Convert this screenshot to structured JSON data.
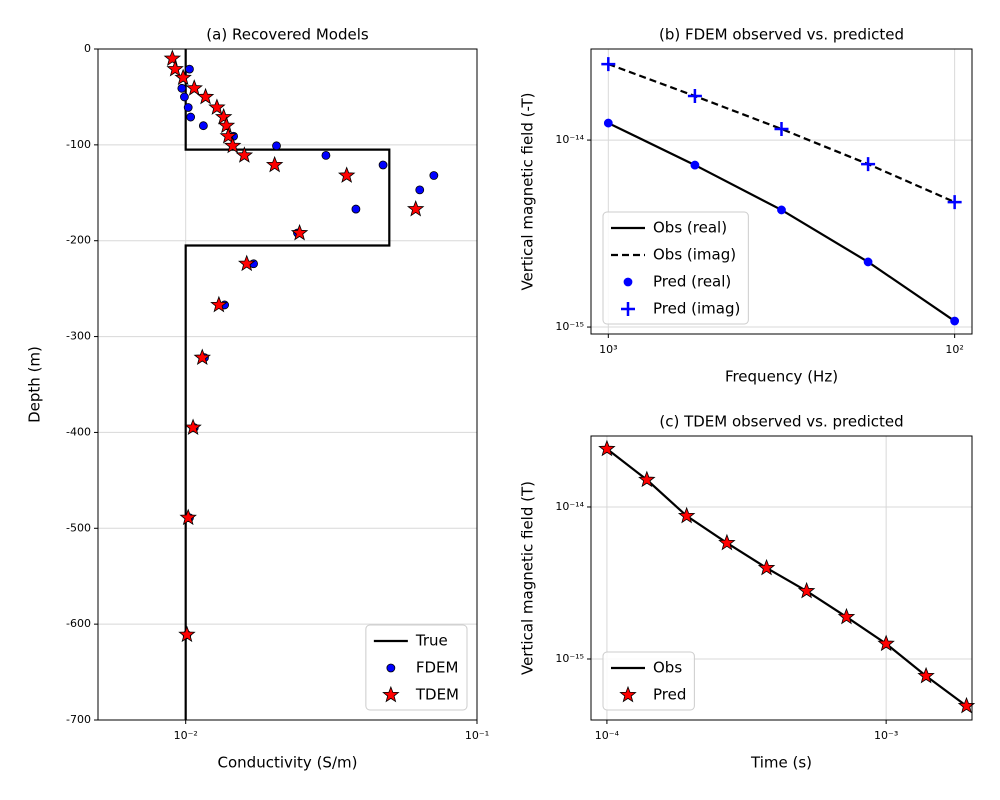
{
  "chart_data": [
    {
      "type": "line",
      "title": "(a) Recovered Models",
      "xlabel": "Conductivity (S/m)",
      "ylabel": "Depth (m)",
      "xscale": "log",
      "xlim": [
        0.005,
        0.1
      ],
      "ylim": [
        -700,
        0
      ],
      "xticks": [
        {
          "value": 0.01,
          "label": "10⁻²"
        },
        {
          "value": 0.1,
          "label": "10⁻¹"
        }
      ],
      "yticks": [
        0,
        -100,
        -200,
        -300,
        -400,
        -500,
        -600,
        -700
      ],
      "grid": true,
      "legend": "lower right",
      "series": [
        {
          "name": "True",
          "color": "#000000",
          "style": "solid",
          "x": [
            0.01,
            0.01,
            0.05,
            0.05,
            0.01,
            0.01
          ],
          "values": [
            0,
            -105,
            -105,
            -205,
            -205,
            -700
          ]
        },
        {
          "name": "FDEM",
          "color": "#0000ff",
          "marker": "circle",
          "edgecolor": "#000000",
          "x": [
            0.0103,
            0.0097,
            0.0099,
            0.0102,
            0.0104,
            0.0115,
            0.0146,
            0.0205,
            0.0303,
            0.0476,
            0.0711,
            0.0636,
            0.0384,
            0.0242,
            0.0171,
            0.0136,
            0.0116,
            0.0107,
            0.0103,
            0.0101
          ],
          "values": [
            -21,
            -41,
            -50,
            -61,
            -71,
            -80,
            -91,
            -101,
            -111,
            -121,
            -132,
            -147,
            -167,
            -192,
            -224,
            -267,
            -322,
            -395,
            -489,
            -611
          ]
        },
        {
          "name": "TDEM",
          "color": "#ff0000",
          "marker": "star",
          "edgecolor": "#000000",
          "x": [
            0.009,
            0.0092,
            0.0098,
            0.0107,
            0.0117,
            0.0128,
            0.0135,
            0.0138,
            0.014,
            0.0145,
            0.0159,
            0.0202,
            0.0357,
            0.0616,
            0.0246,
            0.0162,
            0.013,
            0.0114,
            0.0106,
            0.0102,
            0.0101
          ],
          "values": [
            -10,
            -21,
            -30,
            -41,
            -50,
            -61,
            -71,
            -80,
            -91,
            -101,
            -111,
            -121,
            -132,
            -167,
            -192,
            -224,
            -267,
            -322,
            -395,
            -489,
            -611
          ]
        }
      ]
    },
    {
      "type": "line",
      "title": "(b) FDEM observed vs. predicted",
      "xlabel": "Frequency (Hz)",
      "ylabel": "Vertical magnetic field (-T)",
      "xscale": "log",
      "yscale": "log",
      "xlim": [
        1122,
        89.1
      ],
      "ylim": [
        9.18e-16,
        3.07e-14
      ],
      "xticks": [
        {
          "value": 1000,
          "label": "10³"
        },
        {
          "value": 100,
          "label": "10²"
        }
      ],
      "yticks": [
        {
          "value": 1e-15,
          "label": "10⁻¹⁵"
        },
        {
          "value": 1e-14,
          "label": "10⁻¹⁴"
        }
      ],
      "grid": true,
      "legend": "lower left",
      "x": [
        1000,
        562.3,
        316.2,
        177.8,
        100
      ],
      "series": [
        {
          "name": "Obs (real)",
          "color": "#000000",
          "style": "solid",
          "values": [
            1.233e-14,
            7.35e-15,
            4.23e-15,
            2.23e-15,
            1.077e-15
          ]
        },
        {
          "name": "Obs (imag)",
          "color": "#000000",
          "style": "dashed",
          "values": [
            2.55e-14,
            1.72e-14,
            1.146e-14,
            7.44e-15,
            4.66e-15
          ]
        },
        {
          "name": "Pred (real)",
          "color": "#0000ff",
          "marker": "circle",
          "values": [
            1.233e-14,
            7.35e-15,
            4.23e-15,
            2.23e-15,
            1.077e-15
          ]
        },
        {
          "name": "Pred (imag)",
          "color": "#0000ff",
          "marker": "plus",
          "values": [
            2.55e-14,
            1.72e-14,
            1.146e-14,
            7.44e-15,
            4.66e-15
          ]
        }
      ]
    },
    {
      "type": "line",
      "title": "(c) TDEM observed vs. predicted",
      "xlabel": "Time (s)",
      "ylabel": "Vertical magnetic field (T)",
      "xscale": "log",
      "yscale": "log",
      "xlim": [
        8.77e-05,
        0.00203
      ],
      "ylim": [
        3.97e-16,
        2.93e-14
      ],
      "xticks": [
        {
          "value": 0.0001,
          "label": "10⁻⁴"
        },
        {
          "value": 0.001,
          "label": "10⁻³"
        }
      ],
      "yticks": [
        {
          "value": 1e-15,
          "label": "10⁻¹⁵"
        },
        {
          "value": 1e-14,
          "label": "10⁻¹⁴"
        }
      ],
      "grid": true,
      "legend": "lower left",
      "x": [
        0.0001,
        0.000139,
        0.000193,
        0.000269,
        0.000373,
        0.000519,
        0.000721,
        0.001,
        0.00139,
        0.00194
      ],
      "series": [
        {
          "name": "Obs",
          "color": "#000000",
          "style": "solid",
          "values": [
            2.41e-14,
            1.51e-14,
            8.73e-15,
            5.8e-15,
            3.97e-15,
            2.8e-15,
            1.89e-15,
            1.26e-15,
            7.73e-16,
            4.91e-16
          ]
        },
        {
          "name": "Pred",
          "color": "#ff0000",
          "marker": "star",
          "edgecolor": "#000000",
          "values": [
            2.41e-14,
            1.51e-14,
            8.73e-15,
            5.8e-15,
            3.97e-15,
            2.8e-15,
            1.89e-15,
            1.26e-15,
            7.73e-16,
            4.91e-16
          ]
        }
      ]
    }
  ]
}
